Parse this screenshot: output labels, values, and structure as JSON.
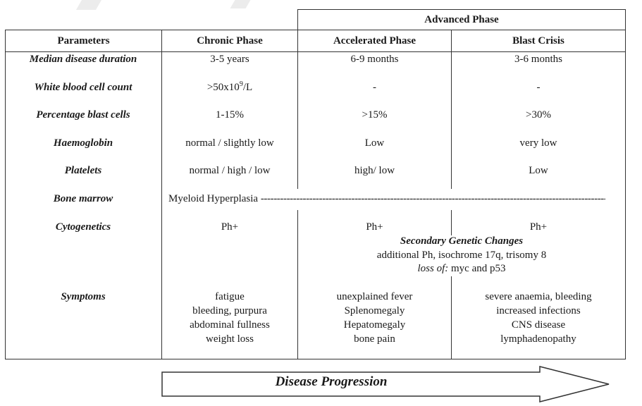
{
  "table": {
    "group_header": "Advanced Phase",
    "headers": {
      "parameters": "Parameters",
      "chronic": "Chronic Phase",
      "accelerated": "Accelerated Phase",
      "blast": "Blast Crisis"
    },
    "rows": {
      "median": {
        "label": "Median disease duration",
        "chronic": "3-5 years",
        "accelerated": "6-9 months",
        "blast": "3-6 months"
      },
      "wbc": {
        "label": "White blood cell count",
        "chronic_base": ">50x10",
        "chronic_sup": "9",
        "chronic_unit": "/L",
        "accelerated": "-",
        "blast": "-"
      },
      "blast_pct": {
        "label": "Percentage blast cells",
        "chronic": "1-15%",
        "accelerated": ">15%",
        "blast": ">30%"
      },
      "hb": {
        "label": "Haemoglobin",
        "chronic": "normal / slightly low",
        "accelerated": "Low",
        "blast": "very low"
      },
      "platelets": {
        "label": "Platelets",
        "chronic": "normal / high / low",
        "accelerated": "high/ low",
        "blast": "Low"
      },
      "marrow": {
        "label": "Bone marrow",
        "text": "Myeloid Hyperplasia",
        "arrow_tail": "------------------------------------------------------------------------------------------------------------------>"
      },
      "cyto": {
        "label": "Cytogenetics",
        "chronic": "Ph+",
        "accelerated": "Ph+",
        "blast": "Ph+",
        "secondary_title": "Secondary Genetic Changes",
        "secondary_line1": "additional Ph, isochrome 17q, trisomy 8",
        "secondary_loss_label": "loss of:",
        "secondary_loss_text": " myc and p53"
      },
      "symptoms": {
        "label": "Symptoms",
        "chronic": [
          "fatigue",
          "bleeding, purpura",
          "abdominal fullness",
          "weight loss"
        ],
        "accelerated": [
          "unexplained fever",
          "Splenomegaly",
          "Hepatomegaly",
          "bone pain"
        ],
        "blast": [
          "severe anaemia, bleeding",
          "increased infections",
          "CNS disease",
          "lymphadenopathy"
        ]
      }
    }
  },
  "progression_label": "Disease Progression"
}
